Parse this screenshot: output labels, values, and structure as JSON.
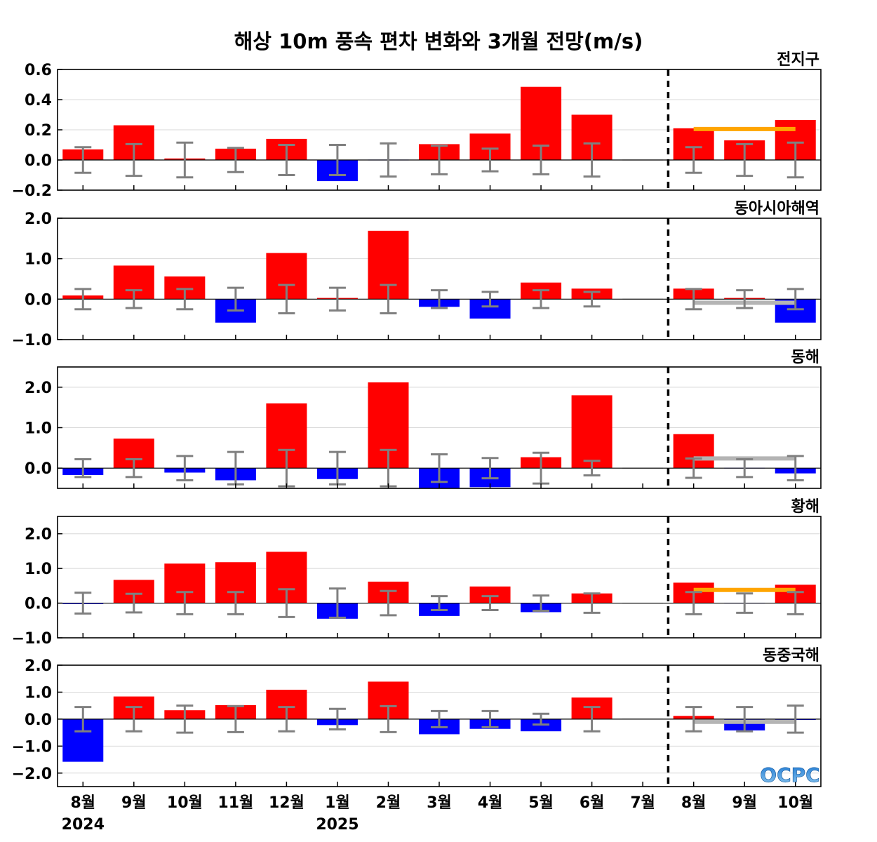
{
  "title": "해상 10m 풍속 편차 변화와 3개월 전망(m/s)",
  "logo_text": "OCPC",
  "colors": {
    "positive": "#ff0000",
    "negative": "#0000ff",
    "errorbar": "#808080",
    "outlook_above": "#ffa500",
    "outlook_normal": "#b4b4b4",
    "divider": "#000000"
  },
  "chart_data": {
    "type": "bar",
    "categories": [
      "8월",
      "9월",
      "10월",
      "11월",
      "12월",
      "1월",
      "2월",
      "3월",
      "4월",
      "5월",
      "6월",
      "7월",
      "8월",
      "9월",
      "10월"
    ],
    "year_labels": [
      {
        "index": 0,
        "text": "2024"
      },
      {
        "index": 5,
        "text": "2025"
      }
    ],
    "forecast_divider_after_index": 11,
    "panels": [
      {
        "title": "전지구",
        "ylim": [
          -0.2,
          0.6
        ],
        "yticks": [
          -0.2,
          0.0,
          0.2,
          0.4,
          0.6
        ],
        "ytick_labels": [
          "−0.2",
          "0.0",
          "0.2",
          "0.4",
          "0.6"
        ],
        "values": [
          0.07,
          0.23,
          0.01,
          0.075,
          0.14,
          -0.14,
          0.0,
          0.105,
          0.175,
          0.485,
          0.3,
          0.0,
          0.21,
          0.13,
          0.265
        ],
        "error_ranges": [
          [
            -0.085,
            0.085
          ],
          [
            -0.105,
            0.105
          ],
          [
            -0.115,
            0.115
          ],
          [
            -0.08,
            0.08
          ],
          [
            -0.1,
            0.1
          ],
          [
            -0.1,
            0.1
          ],
          [
            -0.11,
            0.11
          ],
          [
            -0.095,
            0.095
          ],
          [
            -0.075,
            0.075
          ],
          [
            -0.095,
            0.095
          ],
          [
            -0.11,
            0.11
          ],
          null,
          [
            -0.085,
            0.085
          ],
          [
            -0.105,
            0.105
          ],
          [
            -0.115,
            0.115
          ]
        ],
        "outlook": {
          "category": "above",
          "value": 0.205,
          "from_index": 12,
          "to_index": 14
        }
      },
      {
        "title": "동아시아해역",
        "ylim": [
          -1.0,
          2.0
        ],
        "yticks": [
          -1.0,
          0.0,
          1.0,
          2.0
        ],
        "ytick_labels": [
          "−1.0",
          "0.0",
          "1.0",
          "2.0"
        ],
        "values": [
          0.09,
          0.83,
          0.56,
          -0.58,
          1.14,
          0.03,
          1.69,
          -0.19,
          -0.48,
          0.41,
          0.26,
          0.0,
          0.26,
          0.03,
          -0.58
        ],
        "error_ranges": [
          [
            -0.25,
            0.25
          ],
          [
            -0.22,
            0.22
          ],
          [
            -0.25,
            0.25
          ],
          [
            -0.28,
            0.28
          ],
          [
            -0.35,
            0.35
          ],
          [
            -0.28,
            0.28
          ],
          [
            -0.35,
            0.35
          ],
          [
            -0.22,
            0.22
          ],
          [
            -0.18,
            0.18
          ],
          [
            -0.22,
            0.22
          ],
          [
            -0.18,
            0.18
          ],
          null,
          [
            -0.25,
            0.25
          ],
          [
            -0.22,
            0.22
          ],
          [
            -0.25,
            0.25
          ]
        ],
        "outlook": {
          "category": "normal",
          "value": -0.09,
          "from_index": 12,
          "to_index": 14
        }
      },
      {
        "title": "동해",
        "ylim": [
          -0.5,
          2.5
        ],
        "yticks": [
          0.0,
          1.0,
          2.0
        ],
        "ytick_labels": [
          "0.0",
          "1.0",
          "2.0"
        ],
        "values": [
          -0.17,
          0.73,
          -0.11,
          -0.3,
          1.6,
          -0.27,
          2.12,
          -0.5,
          -0.47,
          0.27,
          1.8,
          0.0,
          0.84,
          0.0,
          -0.13
        ],
        "error_ranges": [
          [
            -0.22,
            0.22
          ],
          [
            -0.22,
            0.22
          ],
          [
            -0.3,
            0.3
          ],
          [
            -0.4,
            0.4
          ],
          [
            -0.45,
            0.45
          ],
          [
            -0.4,
            0.4
          ],
          [
            -0.45,
            0.45
          ],
          [
            -0.34,
            0.34
          ],
          [
            -0.25,
            0.25
          ],
          [
            -0.38,
            0.38
          ],
          [
            -0.18,
            0.18
          ],
          null,
          [
            -0.24,
            0.24
          ],
          [
            -0.22,
            0.22
          ],
          [
            -0.3,
            0.3
          ]
        ],
        "outlook": {
          "category": "normal",
          "value": 0.24,
          "from_index": 12,
          "to_index": 14
        }
      },
      {
        "title": "황해",
        "ylim": [
          -1.0,
          2.5
        ],
        "yticks": [
          -1.0,
          0.0,
          1.0,
          2.0
        ],
        "ytick_labels": [
          "−1.0",
          "0.0",
          "1.0",
          "2.0"
        ],
        "values": [
          -0.02,
          0.67,
          1.14,
          1.18,
          1.48,
          -0.45,
          0.62,
          -0.37,
          0.48,
          -0.26,
          0.28,
          0.0,
          0.59,
          0.0,
          0.53
        ],
        "error_ranges": [
          [
            -0.3,
            0.3
          ],
          [
            -0.27,
            0.27
          ],
          [
            -0.32,
            0.32
          ],
          [
            -0.32,
            0.32
          ],
          [
            -0.4,
            0.4
          ],
          [
            -0.42,
            0.42
          ],
          [
            -0.35,
            0.35
          ],
          [
            -0.2,
            0.2
          ],
          [
            -0.2,
            0.2
          ],
          [
            -0.22,
            0.22
          ],
          [
            -0.28,
            0.28
          ],
          null,
          [
            -0.32,
            0.32
          ],
          [
            -0.28,
            0.28
          ],
          [
            -0.32,
            0.32
          ]
        ],
        "outlook": {
          "category": "above",
          "value": 0.38,
          "from_index": 12,
          "to_index": 14
        }
      },
      {
        "title": "동중국해",
        "ylim": [
          -2.5,
          2.0
        ],
        "yticks": [
          -2.0,
          -1.0,
          0.0,
          1.0,
          2.0
        ],
        "ytick_labels": [
          "−2.0",
          "−1.0",
          "0.0",
          "1.0",
          "2.0"
        ],
        "values": [
          -1.58,
          0.84,
          0.33,
          0.52,
          1.09,
          -0.22,
          1.39,
          -0.56,
          -0.36,
          -0.45,
          0.8,
          0.0,
          0.12,
          -0.42,
          -0.02
        ],
        "error_ranges": [
          [
            -0.45,
            0.45
          ],
          [
            -0.45,
            0.45
          ],
          [
            -0.5,
            0.5
          ],
          [
            -0.48,
            0.48
          ],
          [
            -0.45,
            0.45
          ],
          [
            -0.38,
            0.38
          ],
          [
            -0.48,
            0.48
          ],
          [
            -0.3,
            0.3
          ],
          [
            -0.3,
            0.3
          ],
          [
            -0.2,
            0.2
          ],
          [
            -0.45,
            0.45
          ],
          null,
          [
            -0.45,
            0.45
          ],
          [
            -0.45,
            0.45
          ],
          [
            -0.5,
            0.5
          ]
        ],
        "outlook": {
          "category": "normal",
          "value": -0.1,
          "from_index": 12,
          "to_index": 14
        }
      }
    ]
  }
}
